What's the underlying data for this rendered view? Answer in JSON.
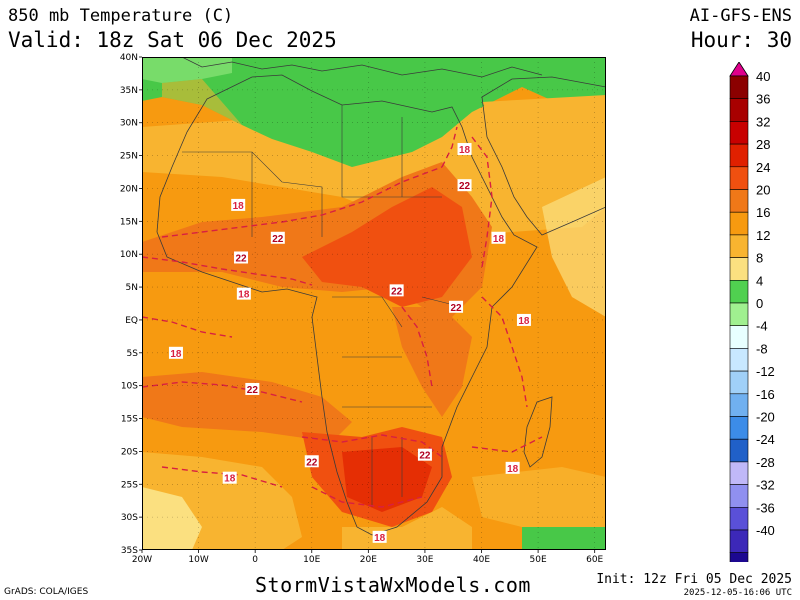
{
  "header": {
    "title_left": "850 mb Temperature (C)",
    "valid": "Valid: 18z Sat 06 Dec 2025",
    "title_right": "AI-GFS-ENS",
    "hour": "Hour: 30"
  },
  "footer": {
    "grads": "GrADS: COLA/IGES",
    "site": "StormVistaWxModels.com",
    "init": "Init: 12z Fri 05 Dec 2025",
    "created": "2025-12-05-16:06 UTC"
  },
  "map": {
    "lon_range": [
      -20,
      62
    ],
    "lat_range": [
      -35,
      40
    ],
    "lat_ticks": [
      "40N",
      "35N",
      "30N",
      "25N",
      "20N",
      "15N",
      "10N",
      "5N",
      "EQ",
      "5S",
      "10S",
      "15S",
      "20S",
      "25S",
      "30S",
      "35S"
    ],
    "lon_ticks": [
      "20W",
      "10W",
      "0",
      "10E",
      "20E",
      "30E",
      "40E",
      "50E",
      "60E"
    ],
    "contour_labels": [
      {
        "text": "18",
        "lon": 37,
        "lat": 26
      },
      {
        "text": "22",
        "lon": 37,
        "lat": 20.5
      },
      {
        "text": "18",
        "lon": -3,
        "lat": 17.5
      },
      {
        "text": "22",
        "lon": 4,
        "lat": 12.5
      },
      {
        "text": "18",
        "lon": 43,
        "lat": 12.5
      },
      {
        "text": "22",
        "lon": -2.5,
        "lat": 9.5
      },
      {
        "text": "18",
        "lon": -2,
        "lat": 4
      },
      {
        "text": "22",
        "lon": 25,
        "lat": 4.5
      },
      {
        "text": "22",
        "lon": 35.5,
        "lat": 2
      },
      {
        "text": "18",
        "lon": 47.5,
        "lat": 0
      },
      {
        "text": "18",
        "lon": -14,
        "lat": -5
      },
      {
        "text": "22",
        "lon": -0.5,
        "lat": -10.5
      },
      {
        "text": "22",
        "lon": 30,
        "lat": -20.5
      },
      {
        "text": "22",
        "lon": 10,
        "lat": -21.5
      },
      {
        "text": "18",
        "lon": 45.5,
        "lat": -22.5
      },
      {
        "text": "18",
        "lon": -4.5,
        "lat": -24
      },
      {
        "text": "18",
        "lon": 22,
        "lat": -33
      }
    ]
  },
  "colorbar": {
    "levels": [
      "40",
      "36",
      "32",
      "28",
      "24",
      "20",
      "16",
      "12",
      "8",
      "4",
      "0",
      "-4",
      "-8",
      "-12",
      "-16",
      "-20",
      "-24",
      "-28",
      "-32",
      "-36",
      "-40"
    ],
    "colors": [
      "#8b0000",
      "#a80000",
      "#c80000",
      "#e02000",
      "#f05010",
      "#f07818",
      "#f79a10",
      "#f8b430",
      "#fbe080",
      "#50d050",
      "#a0f090",
      "#e8ffff",
      "#c8e8ff",
      "#a0d0f8",
      "#70b0f0",
      "#3c8ce8",
      "#2060c8",
      "#c0b8f8",
      "#9090f0",
      "#5a50d8",
      "#3c28b8",
      "#1c0890"
    ],
    "top_color": "#e0008c",
    "bottom_color": "#ffffff"
  },
  "palette": {
    "green": "#48c848",
    "light_green": "#78dc6a",
    "yellow": "#fbe080",
    "light_orange": "#f8b430",
    "orange": "#f79a10",
    "dark_orange": "#f07818",
    "red_orange": "#f05010",
    "red": "#e02000",
    "contour": "#d82040"
  }
}
